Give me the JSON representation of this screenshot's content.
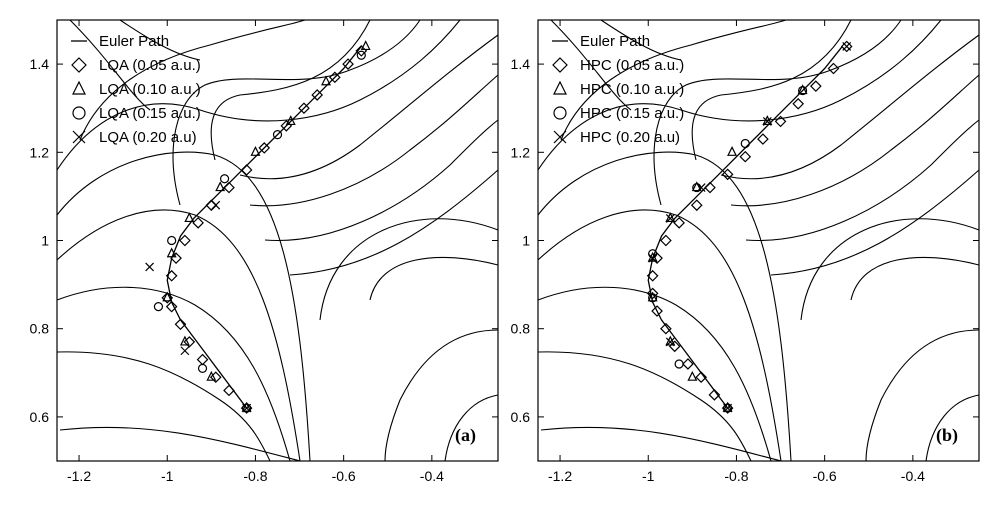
{
  "chart_data": [
    {
      "type": "scatter",
      "panel_label": "(a)",
      "xlim": [
        -1.25,
        -0.25
      ],
      "ylim": [
        0.5,
        1.5
      ],
      "xticks": [
        -1.2,
        -1,
        -0.8,
        -0.6,
        -0.4
      ],
      "xtick_labels": [
        "-1.2",
        "-1",
        "-0.8",
        "-0.6",
        "-0.4"
      ],
      "yticks": [
        0.6,
        0.8,
        1,
        1.2,
        1.4
      ],
      "ytick_labels": [
        "0.6",
        "0.8",
        "1",
        "1.2",
        "1.4"
      ],
      "legend_position": "top-left",
      "legend": [
        {
          "label": "Euler Path",
          "marker": "line"
        },
        {
          "label": "LQA (0.05 a.u.)",
          "marker": "diamond"
        },
        {
          "label": "LQA (0.10 a.u.)",
          "marker": "triangle"
        },
        {
          "label": "LQA (0.15 a.u.)",
          "marker": "circle"
        },
        {
          "label": "LQA (0.20 a.u)",
          "marker": "cross"
        }
      ],
      "euler_path": {
        "x": [
          -0.82,
          -0.85,
          -0.88,
          -0.91,
          -0.94,
          -0.97,
          -0.99,
          -1.0,
          -0.99,
          -0.97,
          -0.94,
          -0.9,
          -0.86,
          -0.82,
          -0.78,
          -0.73,
          -0.69,
          -0.64,
          -0.6,
          -0.56
        ],
        "y": [
          0.62,
          0.66,
          0.7,
          0.74,
          0.78,
          0.82,
          0.86,
          0.91,
          0.96,
          1.01,
          1.05,
          1.09,
          1.13,
          1.17,
          1.21,
          1.26,
          1.3,
          1.35,
          1.39,
          1.44
        ]
      },
      "series": [
        {
          "name": "LQA (0.05 a.u.)",
          "marker": "diamond",
          "x": [
            -0.82,
            -0.86,
            -0.89,
            -0.92,
            -0.95,
            -0.97,
            -0.99,
            -1.0,
            -0.99,
            -0.98,
            -0.96,
            -0.93,
            -0.9,
            -0.86,
            -0.82,
            -0.78,
            -0.73,
            -0.69,
            -0.66,
            -0.62,
            -0.59,
            -0.56
          ],
          "y": [
            0.62,
            0.66,
            0.69,
            0.73,
            0.77,
            0.81,
            0.85,
            0.87,
            0.92,
            0.96,
            1.0,
            1.04,
            1.08,
            1.12,
            1.16,
            1.21,
            1.26,
            1.3,
            1.33,
            1.37,
            1.4,
            1.43
          ]
        },
        {
          "name": "LQA (0.10 a.u.)",
          "marker": "triangle",
          "x": [
            -0.82,
            -0.9,
            -0.96,
            -1.0,
            -0.99,
            -0.95,
            -0.88,
            -0.8,
            -0.72,
            -0.64,
            -0.55
          ],
          "y": [
            0.62,
            0.69,
            0.77,
            0.87,
            0.97,
            1.05,
            1.12,
            1.2,
            1.27,
            1.36,
            1.44
          ]
        },
        {
          "name": "LQA (0.15 a.u.)",
          "marker": "circle",
          "x": [
            -0.82,
            -0.92,
            -1.02,
            -0.99,
            -0.87,
            -0.75,
            -0.56
          ],
          "y": [
            0.62,
            0.71,
            0.85,
            1.0,
            1.14,
            1.24,
            1.42
          ]
        },
        {
          "name": "LQA (0.20 a.u)",
          "marker": "cross",
          "x": [
            -0.82,
            -0.96,
            -1.04,
            -0.89
          ],
          "y": [
            0.62,
            0.75,
            0.94,
            1.08
          ]
        }
      ]
    },
    {
      "type": "scatter",
      "panel_label": "(b)",
      "xlim": [
        -1.25,
        -0.25
      ],
      "ylim": [
        0.5,
        1.5
      ],
      "xticks": [
        -1.2,
        -1,
        -0.8,
        -0.6,
        -0.4
      ],
      "xtick_labels": [
        "-1.2",
        "-1",
        "-0.8",
        "-0.6",
        "-0.4"
      ],
      "yticks": [
        0.6,
        0.8,
        1,
        1.2,
        1.4
      ],
      "ytick_labels": [
        "0.6",
        "0.8",
        "1",
        "1.2",
        "1.4"
      ],
      "legend_position": "top-left",
      "legend": [
        {
          "label": "Euler Path",
          "marker": "line"
        },
        {
          "label": "HPC (0.05 a.u.)",
          "marker": "diamond"
        },
        {
          "label": "HPC (0.10 a.u.)",
          "marker": "triangle"
        },
        {
          "label": "HPC (0.15 a.u.)",
          "marker": "circle"
        },
        {
          "label": "HPC (0.20 a.u)",
          "marker": "cross"
        }
      ],
      "euler_path": {
        "x": [
          -0.82,
          -0.85,
          -0.88,
          -0.91,
          -0.94,
          -0.97,
          -0.99,
          -1.0,
          -0.99,
          -0.97,
          -0.94,
          -0.9,
          -0.86,
          -0.82,
          -0.78,
          -0.73,
          -0.69,
          -0.64,
          -0.6,
          -0.56
        ],
        "y": [
          0.62,
          0.66,
          0.7,
          0.74,
          0.78,
          0.82,
          0.86,
          0.91,
          0.96,
          1.01,
          1.05,
          1.09,
          1.13,
          1.17,
          1.21,
          1.26,
          1.3,
          1.35,
          1.39,
          1.44
        ]
      },
      "series": [
        {
          "name": "HPC (0.05 a.u.)",
          "marker": "diamond",
          "x": [
            -0.82,
            -0.85,
            -0.88,
            -0.91,
            -0.94,
            -0.96,
            -0.98,
            -0.99,
            -0.99,
            -0.98,
            -0.96,
            -0.93,
            -0.89,
            -0.86,
            -0.82,
            -0.78,
            -0.74,
            -0.7,
            -0.66,
            -0.62,
            -0.58,
            -0.55
          ],
          "y": [
            0.62,
            0.65,
            0.69,
            0.72,
            0.76,
            0.8,
            0.84,
            0.88,
            0.92,
            0.96,
            1.0,
            1.04,
            1.08,
            1.12,
            1.15,
            1.19,
            1.23,
            1.27,
            1.31,
            1.35,
            1.39,
            1.44
          ]
        },
        {
          "name": "HPC (0.10 a.u.)",
          "marker": "triangle",
          "x": [
            -0.82,
            -0.9,
            -0.95,
            -0.99,
            -0.99,
            -0.95,
            -0.89,
            -0.81,
            -0.73,
            -0.65
          ],
          "y": [
            0.62,
            0.69,
            0.77,
            0.87,
            0.96,
            1.05,
            1.12,
            1.2,
            1.27,
            1.34
          ]
        },
        {
          "name": "HPC (0.15 a.u.)",
          "marker": "circle",
          "x": [
            -0.82,
            -0.93,
            -0.99,
            -0.99,
            -0.89,
            -0.78,
            -0.65
          ],
          "y": [
            0.62,
            0.72,
            0.87,
            0.97,
            1.12,
            1.22,
            1.34
          ]
        },
        {
          "name": "HPC (0.20 a.u)",
          "marker": "cross",
          "x": [
            -0.82,
            -0.95,
            -0.99,
            -0.95,
            -0.88,
            -0.73,
            -0.55
          ],
          "y": [
            0.62,
            0.77,
            0.96,
            1.05,
            1.12,
            1.27,
            1.44
          ]
        }
      ]
    }
  ]
}
